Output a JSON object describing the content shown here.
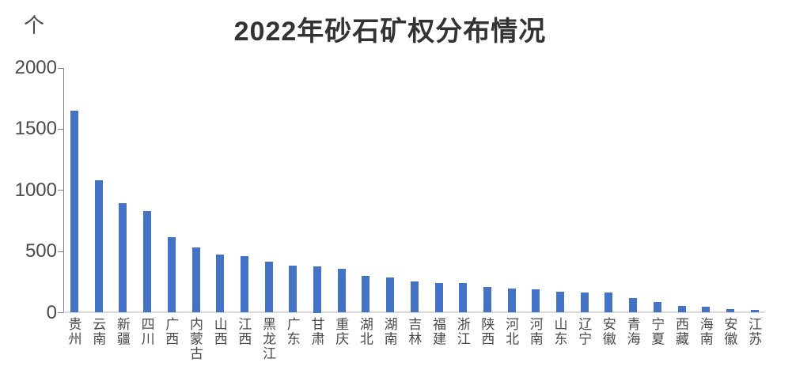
{
  "title": "2022年砂石矿权分布情况",
  "colors": {
    "bar": "#4472C4",
    "axis_text": "#4a4a4a",
    "title_text": "#333333",
    "axis_line": "#7f7f7f",
    "baseline": "#d9d9d9"
  },
  "chart_data": {
    "type": "bar",
    "title": "2022年砂石矿权分布情况",
    "unit": "个",
    "categories": [
      "贵州",
      "云南",
      "新疆",
      "四川",
      "广西",
      "内蒙古",
      "山西",
      "江西",
      "黑龙江",
      "广东",
      "甘肃",
      "重庆",
      "湖北",
      "湖南",
      "吉林",
      "福建",
      "浙江",
      "陕西",
      "河北",
      "河南",
      "山东",
      "辽宁",
      "安徽",
      "青海",
      "宁夏",
      "西藏",
      "海南",
      "安徽",
      "江苏"
    ],
    "values": [
      1650,
      1085,
      895,
      830,
      620,
      530,
      475,
      460,
      420,
      385,
      375,
      360,
      300,
      290,
      255,
      240,
      240,
      210,
      200,
      190,
      172,
      165,
      165,
      120,
      85,
      55,
      48,
      30,
      20
    ],
    "xlabel": "",
    "ylabel": "个",
    "ylim": [
      0,
      2000
    ],
    "yticks": [
      0,
      500,
      1000,
      1500,
      2000
    ],
    "grid": false,
    "legend": "none"
  }
}
